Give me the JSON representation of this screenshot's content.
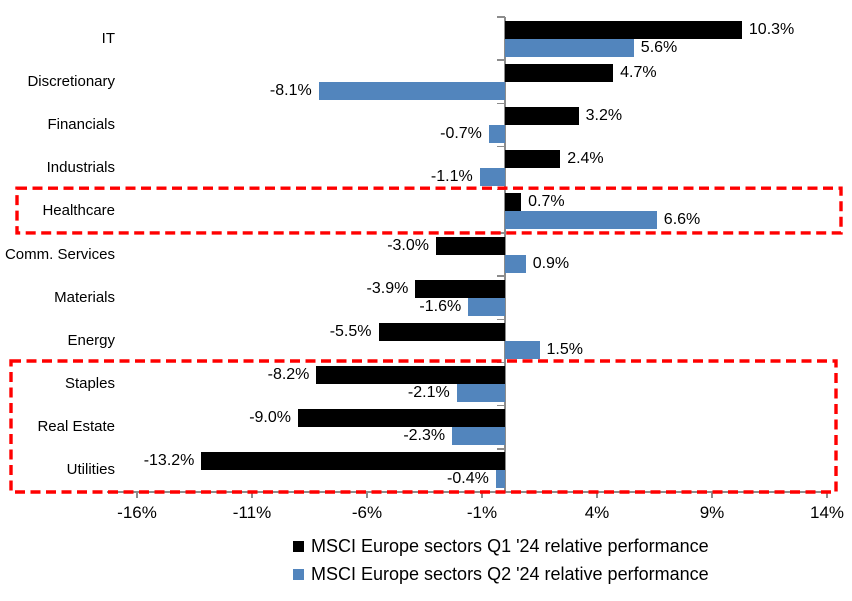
{
  "chart_data": {
    "type": "bar",
    "orientation": "horizontal",
    "title": "",
    "xlabel": "",
    "ylabel": "",
    "grid": false,
    "legend_position": "bottom-center",
    "x_axis": {
      "unit": "%",
      "xlim": [
        -17.3,
        14.2
      ],
      "tick_values": [
        -16,
        -11,
        -6,
        -1,
        4,
        9,
        14
      ],
      "tick_labels": [
        "-16%",
        "-11%",
        "-6%",
        "-1%",
        "4%",
        "9%",
        "14%"
      ]
    },
    "categories": [
      "IT",
      "Discretionary",
      "Financials",
      "Industrials",
      "Healthcare",
      "Comm. Services",
      "Materials",
      "Energy",
      "Staples",
      "Real Estate",
      "Utilities"
    ],
    "series": [
      {
        "name": "MSCI Europe sectors Q1 '24 relative performance",
        "color": "#000000",
        "values": [
          10.3,
          4.7,
          3.2,
          2.4,
          0.7,
          -3.0,
          -3.9,
          -5.5,
          -8.2,
          -9.0,
          -13.2
        ],
        "labels": [
          "10.3%",
          "4.7%",
          "3.2%",
          "2.4%",
          "0.7%",
          "-3.0%",
          "-3.9%",
          "-5.5%",
          "-8.2%",
          "-9.0%",
          "-13.2%"
        ]
      },
      {
        "name": "MSCI Europe sectors Q2 '24 relative performance",
        "color": "#5285BD",
        "values": [
          5.6,
          -8.1,
          -0.7,
          -1.1,
          6.6,
          0.9,
          -1.6,
          1.5,
          -2.1,
          -2.3,
          -0.4
        ],
        "labels": [
          "5.6%",
          "-8.1%",
          "-0.7%",
          "-1.1%",
          "6.6%",
          "0.9%",
          "-1.6%",
          "1.5%",
          "-2.1%",
          "-2.3%",
          "-0.4%"
        ]
      }
    ],
    "highlights": [
      {
        "rows": [
          4,
          4
        ],
        "name": "healthcare-highlight"
      },
      {
        "rows": [
          8,
          10
        ],
        "name": "staples-to-utilities-highlight"
      }
    ],
    "highlight_color": "#FF0000"
  }
}
